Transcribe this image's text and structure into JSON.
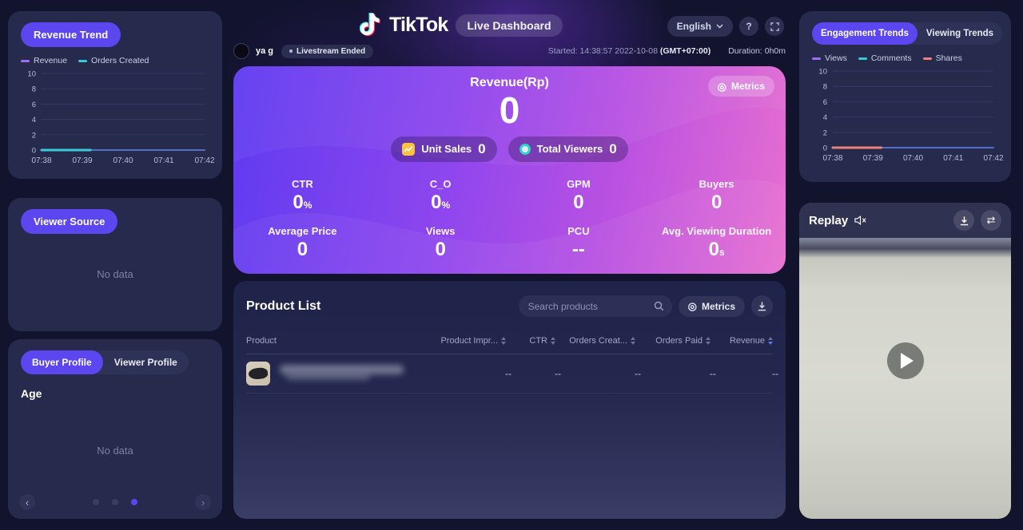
{
  "header": {
    "logo_text": "TikTok",
    "dashboard_badge": "Live Dashboard",
    "language_selector": "English",
    "help_button": "?"
  },
  "session": {
    "username": "ya g",
    "status": "Livestream Ended",
    "started": "Started: 14:38:57 2022-10-08",
    "timezone": "(GMT+07:00)",
    "duration": "Duration: 0h0m"
  },
  "revenue_trend_panel": {
    "title": "Revenue Trend",
    "legend": [
      {
        "label": "Revenue",
        "color": "#9e6ef2"
      },
      {
        "label": "Orders Created",
        "color": "#3cc8d4"
      }
    ]
  },
  "viewer_source_panel": {
    "title": "Viewer Source",
    "empty_text": "No data"
  },
  "profile_panel": {
    "tabs": [
      {
        "label": "Buyer Profile",
        "active": true
      },
      {
        "label": "Viewer Profile",
        "active": false
      }
    ],
    "section_title": "Age",
    "empty_text": "No data",
    "pagination": {
      "dots": 3,
      "active_dot": 2
    }
  },
  "revenue_card": {
    "title": "Revenue(Rp)",
    "value": "0",
    "metrics_button": "Metrics",
    "badges": [
      {
        "label": "Unit Sales",
        "value": "0",
        "icon": "trend-chart-icon"
      },
      {
        "label": "Total Viewers",
        "value": "0",
        "icon": "viewers-ring-icon"
      }
    ],
    "stats": [
      {
        "label": "CTR",
        "value": "0",
        "unit": "%"
      },
      {
        "label": "C_O",
        "value": "0",
        "unit": "%"
      },
      {
        "label": "GPM",
        "value": "0",
        "unit": ""
      },
      {
        "label": "Buyers",
        "value": "0",
        "unit": ""
      },
      {
        "label": "Average Price",
        "value": "0",
        "unit": ""
      },
      {
        "label": "Views",
        "value": "0",
        "unit": ""
      },
      {
        "label": "PCU",
        "value": "--",
        "unit": ""
      },
      {
        "label": "Avg. Viewing Duration",
        "value": "0",
        "unit": "s"
      }
    ]
  },
  "product_list": {
    "title": "Product List",
    "search_placeholder": "Search products",
    "metrics_button": "Metrics",
    "columns": [
      {
        "label": "Product",
        "sortable": false,
        "align": "left"
      },
      {
        "label": "Product Impr...",
        "sortable": true,
        "align": "right"
      },
      {
        "label": "CTR",
        "sortable": true,
        "align": "right"
      },
      {
        "label": "Orders Creat...",
        "sortable": true,
        "align": "right"
      },
      {
        "label": "Orders Paid",
        "sortable": true,
        "align": "right"
      },
      {
        "label": "Revenue",
        "sortable": true,
        "align": "right",
        "sorted": "desc"
      }
    ],
    "rows": [
      {
        "product": "(redacted)",
        "values": [
          "--",
          "--",
          "--",
          "--",
          "--"
        ]
      }
    ]
  },
  "trends_panel": {
    "tabs": [
      {
        "label": "Engagement Trends",
        "active": true
      },
      {
        "label": "Viewing Trends",
        "active": false
      }
    ],
    "legend": [
      {
        "label": "Views",
        "color": "#9e6ef2"
      },
      {
        "label": "Comments",
        "color": "#3cc8d4"
      },
      {
        "label": "Shares",
        "color": "#ef8276"
      }
    ]
  },
  "replay_panel": {
    "title": "Replay"
  },
  "chart_data": [
    {
      "type": "line",
      "title": "Revenue Trend",
      "x": [
        "07:38",
        "07:39",
        "07:40",
        "07:41",
        "07:42"
      ],
      "ylim": [
        0,
        10
      ],
      "yticks": [
        0,
        2,
        4,
        6,
        8,
        10
      ],
      "grid": true,
      "legend_position": "top",
      "series": [
        {
          "name": "Revenue",
          "line_color": "#5470c6",
          "values": [
            0,
            0,
            0,
            0,
            0
          ],
          "x_extent": [
            0,
            1
          ],
          "width": 2
        },
        {
          "name": "Orders Created",
          "line_color": "#3cc8d4",
          "values": [
            0,
            0
          ],
          "x_extent": [
            0,
            0.3
          ],
          "width": 3
        }
      ]
    },
    {
      "type": "line",
      "title": "Engagement Trends",
      "x": [
        "07:38",
        "07:39",
        "07:40",
        "07:41",
        "07:42"
      ],
      "ylim": [
        0,
        10
      ],
      "yticks": [
        0,
        2,
        4,
        6,
        8,
        10
      ],
      "grid": true,
      "legend_position": "top",
      "series": [
        {
          "name": "Views",
          "line_color": "#5470c6",
          "values": [
            0,
            0,
            0,
            0,
            0
          ],
          "x_extent": [
            0,
            1
          ],
          "width": 2
        },
        {
          "name": "Comments",
          "line_color": "#3cc8d4",
          "values": [
            0,
            0
          ],
          "x_extent": [
            0,
            0.3
          ],
          "width": 3
        },
        {
          "name": "Shares",
          "line_color": "#ef8276",
          "values": [
            0,
            0
          ],
          "x_extent": [
            0,
            0.3
          ],
          "width": 3
        }
      ]
    }
  ]
}
